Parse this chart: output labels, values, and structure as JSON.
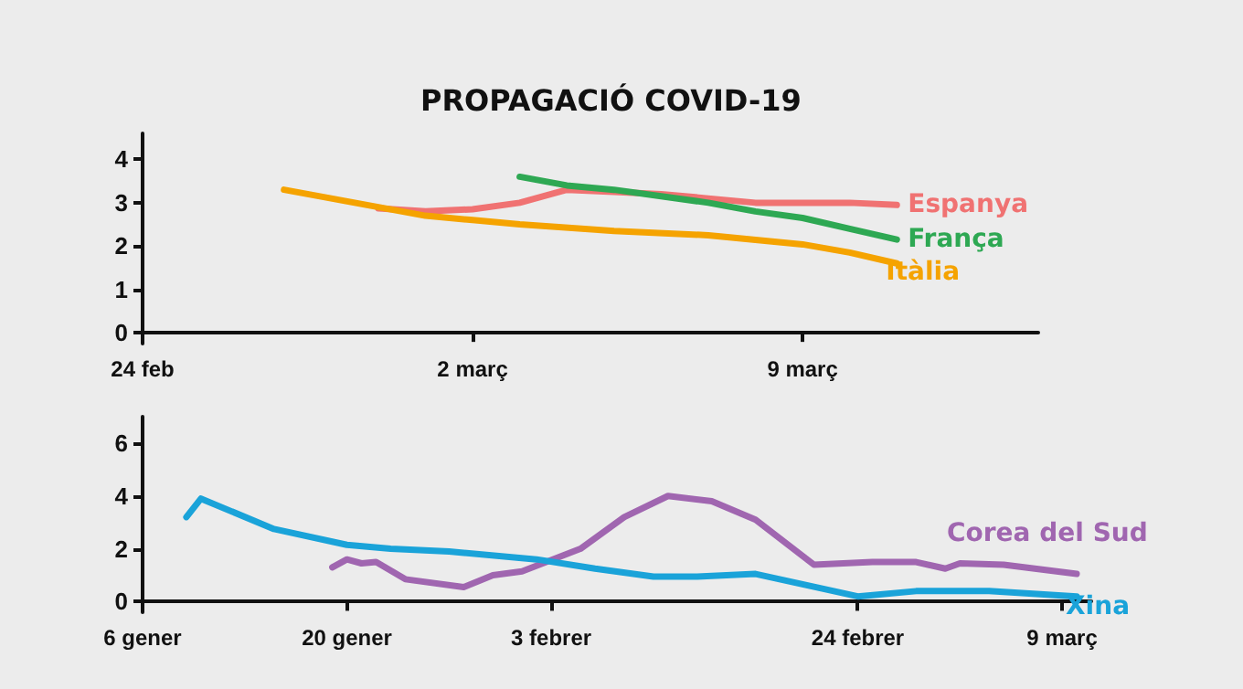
{
  "chart_data": [
    {
      "type": "line",
      "title": "PROPAGACIÓ COVID-19",
      "xlim": [
        "--02-24",
        "--03-14"
      ],
      "xticks": [
        {
          "value": "--02-24",
          "label": "24 feb"
        },
        {
          "value": "--03-02",
          "label": "2 març"
        },
        {
          "value": "--03-09",
          "label": "9 març"
        }
      ],
      "ylim": [
        -0.25,
        4.6
      ],
      "yticks": [
        0,
        1,
        2,
        3,
        4
      ],
      "grid": false,
      "legend": false,
      "series": [
        {
          "name": "Espanya",
          "color": "#f07272",
          "x": [
            "--02-29",
            "--03-01",
            "--03-02",
            "--03-03",
            "--03-04",
            "--03-05",
            "--03-06",
            "--03-07",
            "--03-08",
            "--03-09",
            "--03-10",
            "--03-11"
          ],
          "values": [
            2.87,
            2.8,
            2.85,
            3.0,
            3.3,
            3.25,
            3.2,
            3.1,
            3.0,
            3.0,
            3.0,
            2.95
          ]
        },
        {
          "name": "França",
          "color": "#2ea853",
          "x": [
            "--03-03",
            "--03-04",
            "--03-05",
            "--03-06",
            "--03-07",
            "--03-08",
            "--03-09",
            "--03-10",
            "--03-11"
          ],
          "values": [
            3.6,
            3.4,
            3.3,
            3.15,
            3.0,
            2.8,
            2.65,
            2.4,
            2.15
          ]
        },
        {
          "name": "Itàlia",
          "color": "#f5a300",
          "x": [
            "--02-27",
            "--02-29",
            "--03-01",
            "--03-02",
            "--03-03",
            "--03-05",
            "--03-07",
            "--03-09",
            "--03-10",
            "--03-11"
          ],
          "values": [
            3.3,
            2.9,
            2.7,
            2.6,
            2.5,
            2.35,
            2.25,
            2.04,
            1.85,
            1.6
          ]
        }
      ]
    },
    {
      "type": "line",
      "xlim": [
        "--01-06",
        "--03-11"
      ],
      "xticks": [
        {
          "value": "--01-06",
          "label": "6 gener"
        },
        {
          "value": "--01-20",
          "label": "20 gener"
        },
        {
          "value": "--02-03",
          "label": "3 febrer"
        },
        {
          "value": "--02-24",
          "label": "24 febrer"
        },
        {
          "value": "--03-09",
          "label": "9 març"
        }
      ],
      "ylim": [
        -0.4,
        7
      ],
      "yticks": [
        0,
        2,
        4,
        6
      ],
      "grid": false,
      "legend": false,
      "series": [
        {
          "name": "Corea del Sud",
          "color": "#a066b0",
          "x": [
            "--01-19",
            "--01-20",
            "--01-21",
            "--01-22",
            "--01-24",
            "--01-28",
            "--01-30",
            "--02-01",
            "--02-05",
            "--02-08",
            "--02-11",
            "--02-14",
            "--02-17",
            "--02-21",
            "--02-25",
            "--02-28",
            "--03-01",
            "--03-02",
            "--03-05",
            "--03-10"
          ],
          "values": [
            1.3,
            1.6,
            1.45,
            1.5,
            0.85,
            0.55,
            1.0,
            1.15,
            2.0,
            3.2,
            4.0,
            3.8,
            3.1,
            1.4,
            1.5,
            1.5,
            1.25,
            1.45,
            1.4,
            1.05
          ]
        },
        {
          "name": "Xina",
          "color": "#1aa3d9",
          "x": [
            "--01-09",
            "--01-10",
            "--01-15",
            "--01-20",
            "--01-23",
            "--01-27",
            "--02-02",
            "--02-06",
            "--02-10",
            "--02-13",
            "--02-17",
            "--02-24",
            "--02-28",
            "--03-04",
            "--03-10"
          ],
          "values": [
            3.2,
            3.9,
            2.75,
            2.15,
            2.0,
            1.9,
            1.6,
            1.25,
            0.95,
            0.95,
            1.05,
            0.2,
            0.4,
            0.4,
            0.2
          ]
        }
      ]
    }
  ]
}
